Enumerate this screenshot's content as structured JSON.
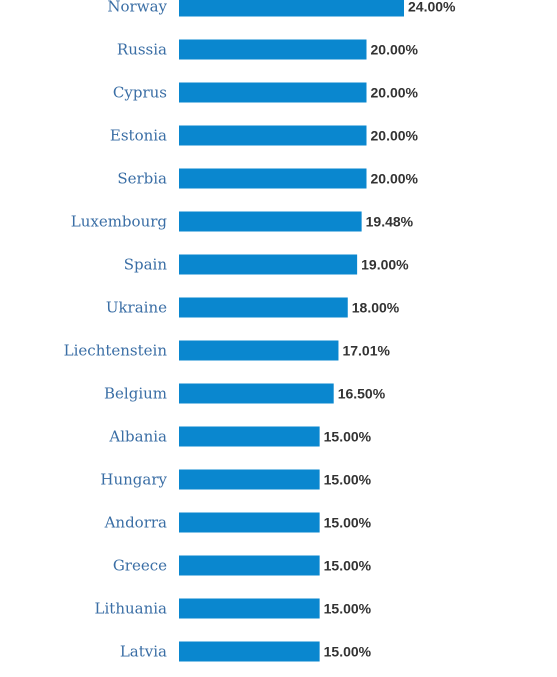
{
  "chart_data": {
    "type": "bar",
    "orientation": "horizontal",
    "categories": [
      "Norway",
      "Russia",
      "Cyprus",
      "Estonia",
      "Serbia",
      "Luxembourg",
      "Spain",
      "Ukraine",
      "Liechtenstein",
      "Belgium",
      "Albania",
      "Hungary",
      "Andorra",
      "Greece",
      "Lithuania",
      "Latvia"
    ],
    "values": [
      24.0,
      20.0,
      20.0,
      20.0,
      20.0,
      19.48,
      19.0,
      18.0,
      17.01,
      16.5,
      15.0,
      15.0,
      15.0,
      15.0,
      15.0,
      15.0
    ],
    "value_labels": [
      "24.00%",
      "20.00%",
      "20.00%",
      "20.00%",
      "20.00%",
      "19.48%",
      "19.00%",
      "18.00%",
      "17.01%",
      "16.50%",
      "15.00%",
      "15.00%",
      "15.00%",
      "15.00%",
      "15.00%",
      "15.00%"
    ],
    "xlim": [
      0,
      24
    ],
    "grid": false,
    "legend": "none"
  },
  "colors": {
    "bar": "#0a87cf",
    "category_label": "#3a6ea5",
    "value_label": "#333333"
  }
}
